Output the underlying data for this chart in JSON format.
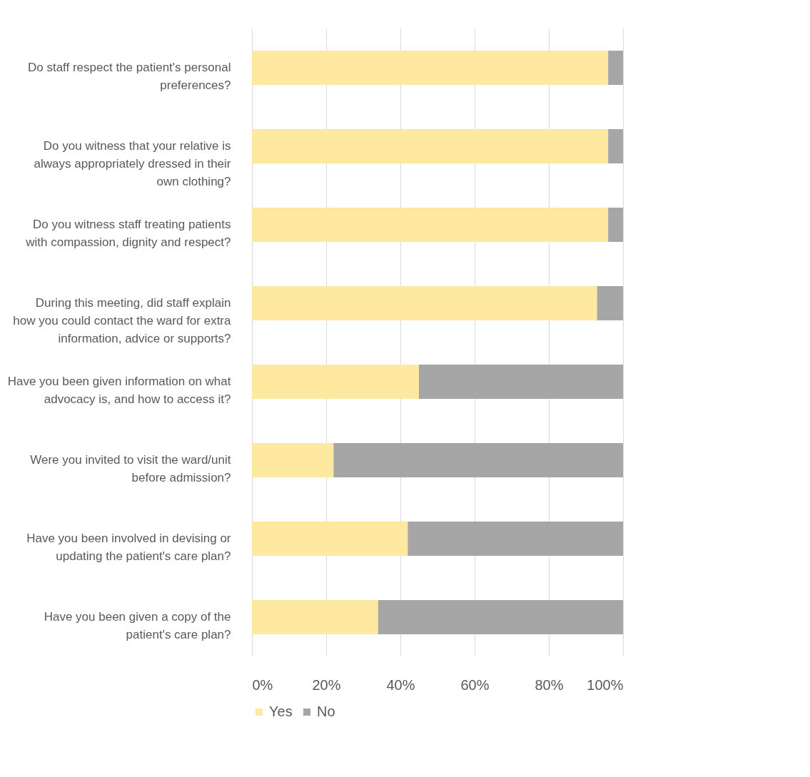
{
  "chart_data": {
    "type": "bar",
    "orientation": "horizontal",
    "stacked": true,
    "categories": [
      "Do staff respect the patient's personal preferences?",
      "Do you witness that your relative is always appropriately dressed in their own clothing?",
      "Do you witness staff treating patients with compassion, dignity and respect?",
      "During this meeting, did staff explain how you could contact the ward for extra information, advice or supports?",
      "Have you been given information on what advocacy is, and how to access it?",
      "Were you invited to visit the ward/unit before admission?",
      "Have you been involved in devising or updating the patient's care plan?",
      "Have you been given a copy of the patient's care plan?"
    ],
    "series": [
      {
        "name": "Yes",
        "color": "#ffe9a0",
        "values": [
          96,
          96,
          96,
          93,
          45,
          22,
          42,
          34
        ]
      },
      {
        "name": "No",
        "color": "#a6a6a6",
        "values": [
          4,
          4,
          4,
          7,
          55,
          78,
          58,
          66
        ]
      }
    ],
    "xlim": [
      0,
      100
    ],
    "xticks": [
      {
        "value": 0,
        "label": "0%"
      },
      {
        "value": 20,
        "label": "20%"
      },
      {
        "value": 40,
        "label": "40%"
      },
      {
        "value": 60,
        "label": "60%"
      },
      {
        "value": 80,
        "label": "80%"
      },
      {
        "value": 100,
        "label": "100%"
      }
    ],
    "grid": "x",
    "legend": "bottom"
  }
}
